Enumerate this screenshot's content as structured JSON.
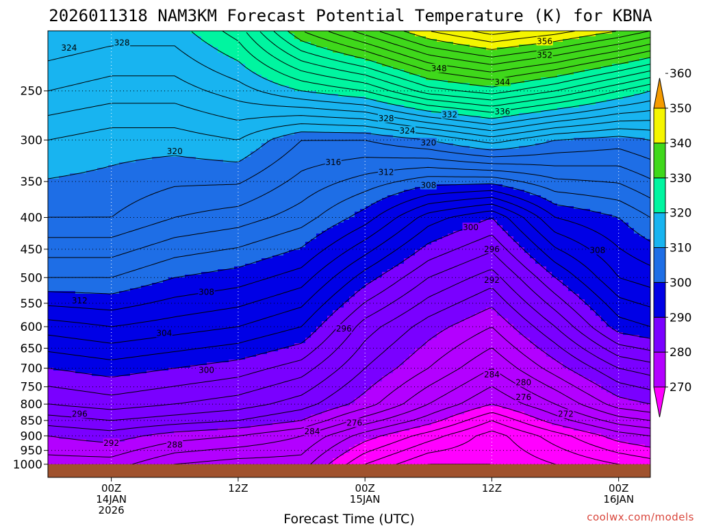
{
  "chart_data": {
    "type": "heatmap",
    "title": "2026011318 NAM3KM Forecast Potential Temperature (K) for KBNA",
    "xlabel": "Forecast Time (UTC)",
    "ylabel": "",
    "y_axis": {
      "scale": "log",
      "reversed": true,
      "range_hPa": [
        1050,
        200
      ],
      "ticks": [
        250,
        300,
        350,
        400,
        450,
        500,
        550,
        600,
        650,
        700,
        750,
        800,
        850,
        900,
        950,
        1000
      ]
    },
    "x_axis": {
      "range": [
        "2026-01-13T18:00Z",
        "2026-01-16T03:00Z"
      ],
      "ticks": [
        {
          "time": "2026-01-14T00:00Z",
          "lines": [
            "00Z",
            "14JAN",
            "2026"
          ]
        },
        {
          "time": "2026-01-14T12:00Z",
          "lines": [
            "12Z"
          ]
        },
        {
          "time": "2026-01-15T00:00Z",
          "lines": [
            "00Z",
            "15JAN"
          ]
        },
        {
          "time": "2026-01-15T12:00Z",
          "lines": [
            "12Z"
          ]
        },
        {
          "time": "2026-01-16T00:00Z",
          "lines": [
            "00Z",
            "16JAN"
          ]
        }
      ]
    },
    "grid": "dotted",
    "color_scale": {
      "levels": [
        270,
        280,
        290,
        300,
        310,
        320,
        330,
        340,
        350,
        360
      ],
      "colors": [
        "#ff00ff",
        "#b300ff",
        "#7a00ff",
        "#0000e6",
        "#1e6ee6",
        "#18b4f0",
        "#00f5a0",
        "#3fd81b",
        "#f5f500",
        "#f59b00"
      ]
    },
    "contour_interval_K": 2,
    "ground_color": "#a0522d",
    "theta_profiles": [
      {
        "time": "2026-01-13T18:00Z",
        "levels_hPa": [
          1000,
          900,
          850,
          800,
          700,
          600,
          500,
          400,
          300,
          250,
          200
        ],
        "theta_K": [
          287,
          290,
          293,
          296,
          300,
          305,
          312,
          318,
          322,
          326,
          330
        ]
      },
      {
        "time": "2026-01-14T00:00Z",
        "levels_hPa": [
          1000,
          900,
          850,
          800,
          700,
          600,
          500,
          400,
          300,
          250,
          200
        ],
        "theta_K": [
          287,
          291,
          294,
          297,
          301,
          306,
          312,
          318,
          321,
          325,
          329
        ]
      },
      {
        "time": "2026-01-14T06:00Z",
        "levels_hPa": [
          1000,
          900,
          850,
          800,
          700,
          600,
          500,
          400,
          300,
          250,
          200
        ],
        "theta_K": [
          284,
          289,
          293,
          296,
          300,
          305,
          310,
          316,
          321,
          325,
          329
        ]
      },
      {
        "time": "2026-01-14T12:00Z",
        "levels_hPa": [
          1000,
          900,
          850,
          800,
          700,
          600,
          500,
          400,
          300,
          250,
          200
        ],
        "theta_K": [
          283,
          288,
          292,
          295,
          299,
          304,
          309,
          315,
          322,
          327,
          333
        ]
      },
      {
        "time": "2026-01-14T18:00Z",
        "levels_hPa": [
          1000,
          900,
          850,
          800,
          700,
          600,
          500,
          400,
          300,
          250,
          200
        ],
        "theta_K": [
          283,
          286,
          290,
          293,
          297,
          302,
          307,
          313,
          318,
          330,
          342
        ]
      },
      {
        "time": "2026-01-15T00:00Z",
        "levels_hPa": [
          1000,
          900,
          850,
          800,
          700,
          600,
          500,
          400,
          300,
          250,
          200
        ],
        "theta_K": [
          276,
          281,
          285,
          289,
          292,
          295,
          301,
          309,
          318,
          332,
          347
        ]
      },
      {
        "time": "2026-01-15T06:00Z",
        "levels_hPa": [
          1000,
          900,
          850,
          800,
          700,
          600,
          500,
          400,
          300,
          250,
          200
        ],
        "theta_K": [
          272,
          277,
          281,
          284,
          288,
          291,
          296,
          303,
          320,
          337,
          352
        ]
      },
      {
        "time": "2026-01-15T12:00Z",
        "levels_hPa": [
          1000,
          900,
          850,
          800,
          700,
          600,
          500,
          400,
          300,
          250,
          200
        ],
        "theta_K": [
          272,
          273,
          276,
          280,
          284,
          288,
          293,
          300,
          323,
          339,
          355
        ]
      },
      {
        "time": "2026-01-15T18:00Z",
        "levels_hPa": [
          1000,
          900,
          850,
          800,
          700,
          600,
          500,
          400,
          300,
          250,
          200
        ],
        "theta_K": [
          274,
          277,
          281,
          284,
          289,
          294,
          300,
          308,
          320,
          336,
          353
        ]
      },
      {
        "time": "2026-01-16T00:00Z",
        "levels_hPa": [
          1000,
          900,
          850,
          800,
          700,
          600,
          500,
          400,
          300,
          250,
          200
        ],
        "theta_K": [
          276,
          281,
          285,
          289,
          294,
          301,
          306,
          310,
          319,
          332,
          350
        ]
      },
      {
        "time": "2026-01-16T03:00Z",
        "levels_hPa": [
          1000,
          900,
          850,
          800,
          700,
          600,
          500,
          400,
          300,
          250,
          200
        ],
        "theta_K": [
          277,
          282,
          286,
          290,
          295,
          302,
          307,
          312,
          320,
          330,
          348
        ]
      }
    ],
    "contour_labels": [
      {
        "text": "324",
        "time": "2026-01-13T20:00Z",
        "level_hPa": 213
      },
      {
        "text": "328",
        "time": "2026-01-14T01:00Z",
        "level_hPa": 209
      },
      {
        "text": "356",
        "time": "2026-01-15T17:00Z",
        "level_hPa": 208
      },
      {
        "text": "352",
        "time": "2026-01-15T17:00Z",
        "level_hPa": 219
      },
      {
        "text": "348",
        "time": "2026-01-15T07:00Z",
        "level_hPa": 230
      },
      {
        "text": "344",
        "time": "2026-01-15T13:00Z",
        "level_hPa": 242
      },
      {
        "text": "336",
        "time": "2026-01-15T13:00Z",
        "level_hPa": 270
      },
      {
        "text": "332",
        "time": "2026-01-15T08:00Z",
        "level_hPa": 273
      },
      {
        "text": "328",
        "time": "2026-01-15T02:00Z",
        "level_hPa": 277
      },
      {
        "text": "324",
        "time": "2026-01-15T04:00Z",
        "level_hPa": 290
      },
      {
        "text": "320",
        "time": "2026-01-15T06:00Z",
        "level_hPa": 303
      },
      {
        "text": "320",
        "time": "2026-01-14T06:00Z",
        "level_hPa": 313
      },
      {
        "text": "316",
        "time": "2026-01-14T21:00Z",
        "level_hPa": 326
      },
      {
        "text": "312",
        "time": "2026-01-15T02:00Z",
        "level_hPa": 338
      },
      {
        "text": "308",
        "time": "2026-01-15T06:00Z",
        "level_hPa": 355
      },
      {
        "text": "300",
        "time": "2026-01-15T10:00Z",
        "level_hPa": 415
      },
      {
        "text": "296",
        "time": "2026-01-15T12:00Z",
        "level_hPa": 450
      },
      {
        "text": "308",
        "time": "2026-01-15T22:00Z",
        "level_hPa": 452
      },
      {
        "text": "292",
        "time": "2026-01-15T12:00Z",
        "level_hPa": 505
      },
      {
        "text": "312",
        "time": "2026-01-13T21:00Z",
        "level_hPa": 545
      },
      {
        "text": "308",
        "time": "2026-01-14T09:00Z",
        "level_hPa": 528
      },
      {
        "text": "304",
        "time": "2026-01-14T05:00Z",
        "level_hPa": 615
      },
      {
        "text": "296",
        "time": "2026-01-14T22:00Z",
        "level_hPa": 605
      },
      {
        "text": "300",
        "time": "2026-01-14T09:00Z",
        "level_hPa": 705
      },
      {
        "text": "284",
        "time": "2026-01-15T12:00Z",
        "level_hPa": 717
      },
      {
        "text": "280",
        "time": "2026-01-15T15:00Z",
        "level_hPa": 738
      },
      {
        "text": "276",
        "time": "2026-01-15T15:00Z",
        "level_hPa": 780
      },
      {
        "text": "272",
        "time": "2026-01-15T19:00Z",
        "level_hPa": 830
      },
      {
        "text": "296",
        "time": "2026-01-13T21:00Z",
        "level_hPa": 830
      },
      {
        "text": "276",
        "time": "2026-01-14T23:00Z",
        "level_hPa": 858
      },
      {
        "text": "284",
        "time": "2026-01-14T19:00Z",
        "level_hPa": 885
      },
      {
        "text": "292",
        "time": "2026-01-14T00:00Z",
        "level_hPa": 925
      },
      {
        "text": "288",
        "time": "2026-01-14T06:00Z",
        "level_hPa": 930
      }
    ]
  },
  "credit": "coolwx.com/models"
}
